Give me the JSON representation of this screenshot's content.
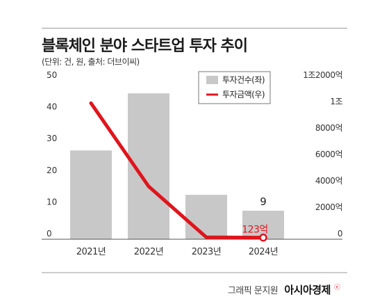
{
  "header": {
    "title": "블록체인 분야 스타트업 투자 추이",
    "subtitle": "(단위: 건, 원, 출처: 더브이씨)"
  },
  "chart_data": {
    "type": "bar",
    "categories": [
      "2021년",
      "2022년",
      "2023년",
      "2024년"
    ],
    "series": [
      {
        "name": "투자건수(좌)",
        "type": "bar",
        "axis": "left",
        "values": [
          28,
          46,
          14,
          9
        ],
        "color": "#c8c8c8"
      },
      {
        "name": "투자금액(우)",
        "type": "line",
        "axis": "right",
        "values": [
          1030000000000,
          400000000000,
          15000000000,
          12300000000
        ],
        "color": "#e0141c"
      }
    ],
    "left_axis": {
      "ticks": [
        "0",
        "10",
        "20",
        "30",
        "40",
        "50"
      ],
      "range": [
        0,
        50
      ]
    },
    "right_axis": {
      "ticks": [
        "0",
        "2000억",
        "4000억",
        "6000억",
        "8000억",
        "1조",
        "1조2000억"
      ],
      "range": [
        0,
        1200000000000
      ]
    },
    "annotations": {
      "bar_label": "9",
      "line_label": "123억"
    },
    "legend_position": "top-right"
  },
  "credit": {
    "prefix": "그래픽 문지원",
    "brand": "아시아경제",
    "mark": "ⓔ"
  }
}
